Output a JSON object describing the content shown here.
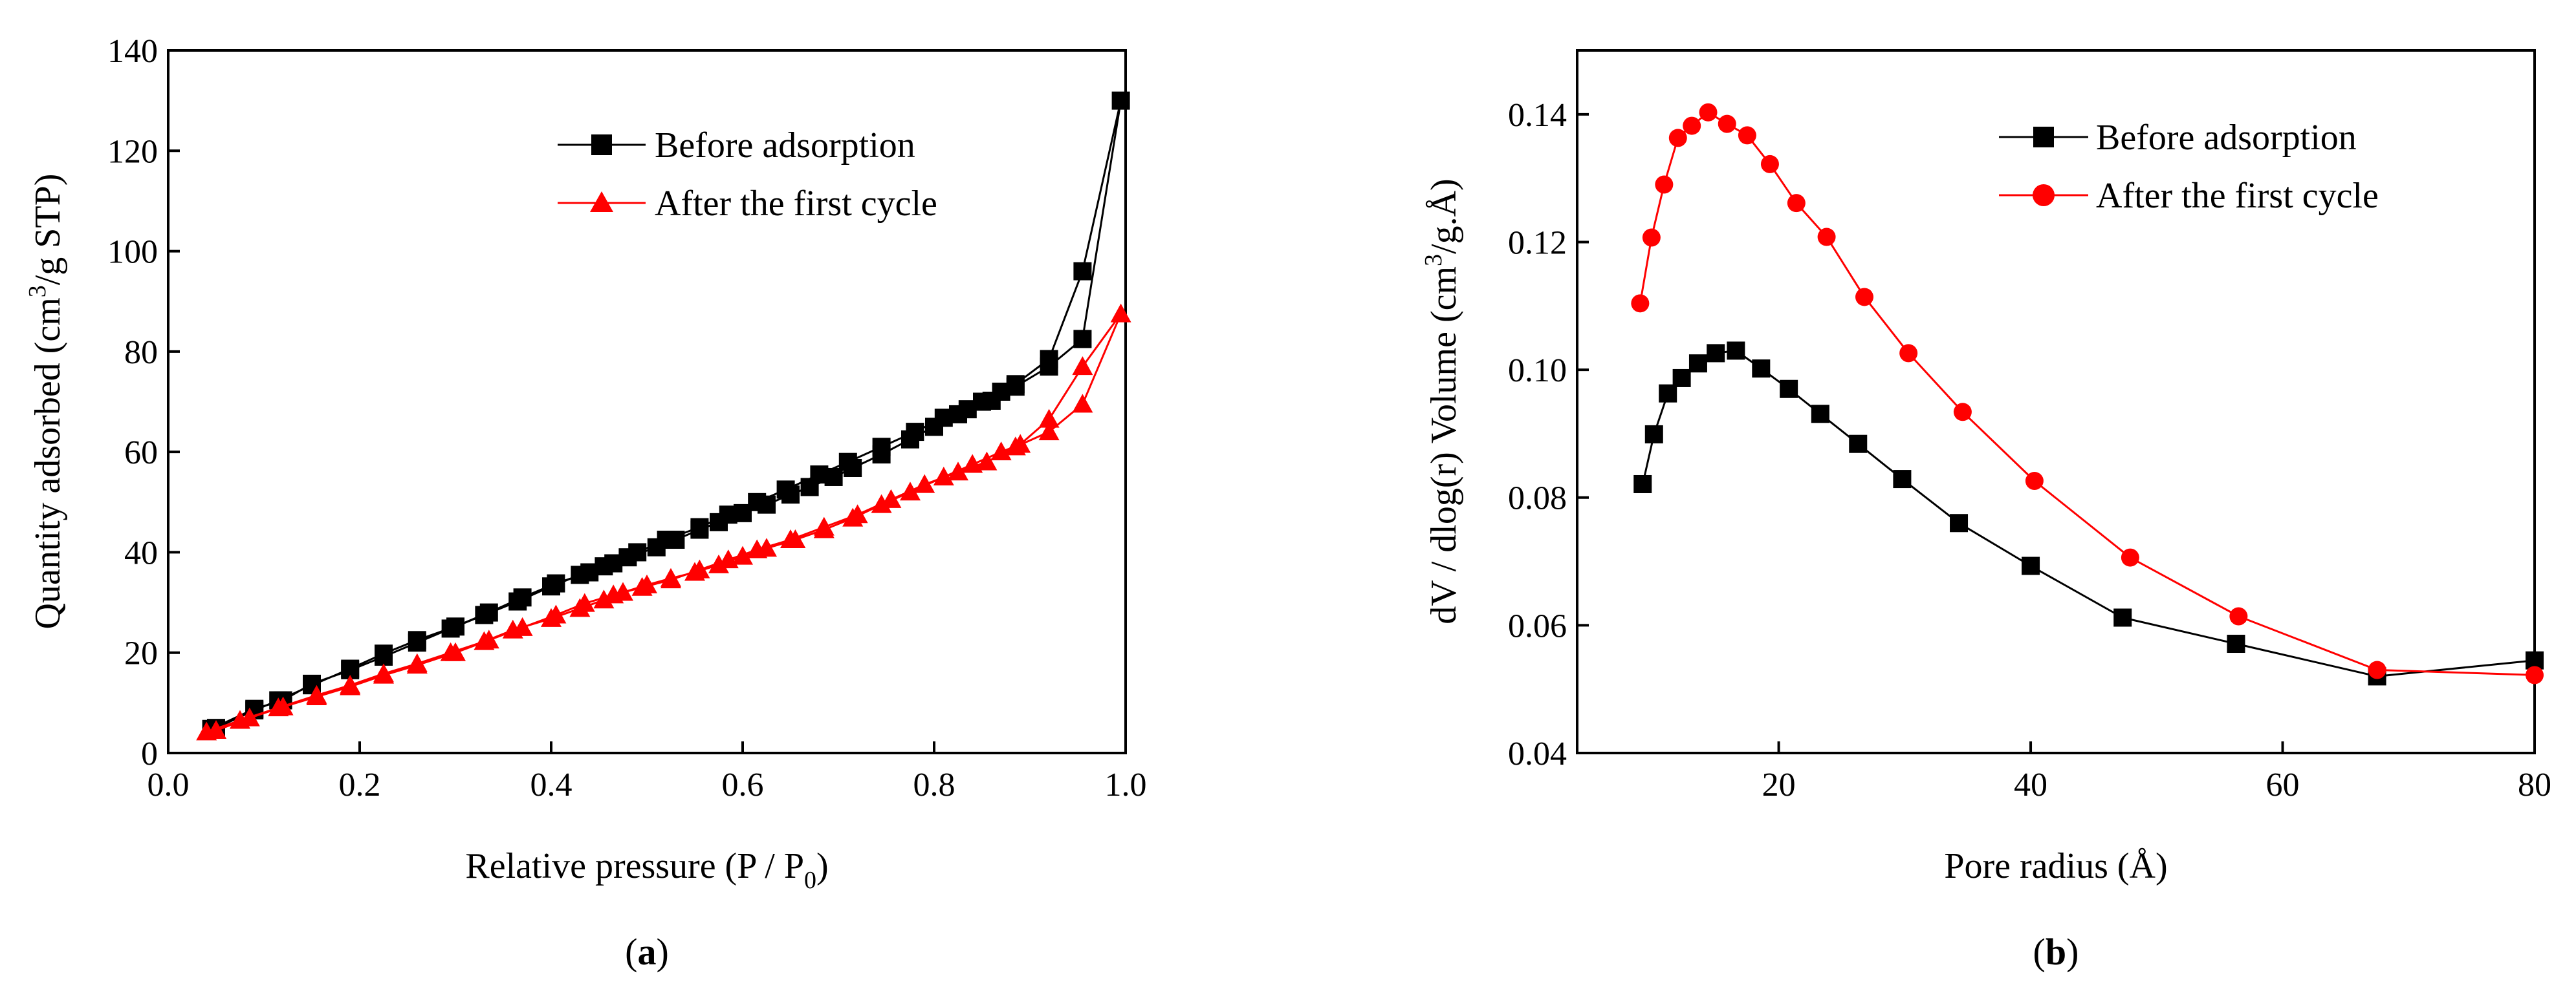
{
  "colors": {
    "before": "#000000",
    "after": "#ff0000",
    "axis": "#000000"
  },
  "chart_data": [
    {
      "type": "line",
      "panel_label": "a",
      "title": "",
      "xlabel": "Relative pressure (P / P",
      "xlabel_sub": "0",
      "xlabel_end": ")",
      "ylabel": "Quantity adsorbed (cm",
      "ylabel_sup": "3",
      "ylabel_end": "/g STP)",
      "xlim": [
        0.0,
        1.0
      ],
      "ylim": [
        0,
        140
      ],
      "xticks": [
        "0.0",
        "0.2",
        "0.4",
        "0.6",
        "0.8",
        "1.0"
      ],
      "xtick_values": [
        0.0,
        0.2,
        0.4,
        0.6,
        0.8,
        1.0
      ],
      "yticks": [
        "0",
        "20",
        "40",
        "60",
        "80",
        "100",
        "120",
        "140"
      ],
      "ytick_values": [
        0,
        20,
        40,
        60,
        80,
        100,
        120,
        140
      ],
      "legend_position": "top-right",
      "series": [
        {
          "name": "Before adsorption",
          "marker": "square",
          "color": "#000000",
          "points": [
            [
              0.045,
              4.8
            ],
            [
              0.09,
              8.8
            ],
            [
              0.12,
              10.5
            ],
            [
              0.15,
              13.8
            ],
            [
              0.19,
              16.5
            ],
            [
              0.225,
              19.2
            ],
            [
              0.26,
              22.0
            ],
            [
              0.295,
              24.8
            ],
            [
              0.33,
              27.5
            ],
            [
              0.365,
              30.2
            ],
            [
              0.4,
              33.2
            ],
            [
              0.43,
              35.5
            ],
            [
              0.455,
              37.2
            ],
            [
              0.48,
              39.0
            ],
            [
              0.51,
              41.0
            ],
            [
              0.53,
              42.5
            ],
            [
              0.555,
              44.5
            ],
            [
              0.575,
              46.0
            ],
            [
              0.6,
              47.8
            ],
            [
              0.625,
              49.5
            ],
            [
              0.65,
              51.5
            ],
            [
              0.67,
              53.0
            ],
            [
              0.695,
              55.0
            ],
            [
              0.715,
              56.8
            ],
            [
              0.745,
              59.5
            ],
            [
              0.775,
              62.5
            ],
            [
              0.8,
              65.0
            ],
            [
              0.825,
              67.5
            ],
            [
              0.85,
              70.0
            ],
            [
              0.87,
              72.0
            ],
            [
              0.885,
              73.5
            ],
            [
              0.92,
              78.5
            ],
            [
              0.955,
              96.0
            ],
            [
              0.995,
              130.0
            ],
            [
              0.955,
              82.5
            ],
            [
              0.92,
              77.0
            ],
            [
              0.885,
              73.0
            ],
            [
              0.86,
              70.2
            ],
            [
              0.835,
              68.5
            ],
            [
              0.81,
              66.8
            ],
            [
              0.78,
              64.0
            ],
            [
              0.745,
              61.0
            ],
            [
              0.71,
              58.0
            ],
            [
              0.68,
              55.5
            ],
            [
              0.645,
              52.5
            ],
            [
              0.615,
              50.0
            ],
            [
              0.585,
              47.5
            ],
            [
              0.555,
              45.0
            ],
            [
              0.52,
              42.5
            ],
            [
              0.49,
              40.0
            ],
            [
              0.465,
              37.8
            ],
            [
              0.44,
              36.0
            ],
            [
              0.405,
              33.8
            ],
            [
              0.37,
              31.0
            ],
            [
              0.335,
              28.0
            ],
            [
              0.3,
              25.2
            ],
            [
              0.26,
              22.5
            ],
            [
              0.225,
              19.8
            ],
            [
              0.19,
              16.8
            ],
            [
              0.15,
              13.5
            ],
            [
              0.115,
              10.5
            ],
            [
              0.09,
              8.5
            ],
            [
              0.05,
              5.0
            ]
          ]
        },
        {
          "name": "After the first cycle",
          "marker": "triangle",
          "color": "#ff0000",
          "points": [
            [
              0.04,
              4.2
            ],
            [
              0.075,
              6.5
            ],
            [
              0.115,
              9.0
            ],
            [
              0.155,
              11.5
            ],
            [
              0.19,
              13.5
            ],
            [
              0.225,
              15.8
            ],
            [
              0.26,
              17.8
            ],
            [
              0.295,
              20.0
            ],
            [
              0.33,
              22.2
            ],
            [
              0.36,
              24.5
            ],
            [
              0.4,
              26.8
            ],
            [
              0.43,
              28.8
            ],
            [
              0.455,
              30.5
            ],
            [
              0.475,
              32.0
            ],
            [
              0.5,
              33.5
            ],
            [
              0.525,
              34.8
            ],
            [
              0.55,
              36.0
            ],
            [
              0.575,
              37.5
            ],
            [
              0.6,
              39.2
            ],
            [
              0.625,
              40.8
            ],
            [
              0.655,
              42.5
            ],
            [
              0.685,
              44.5
            ],
            [
              0.715,
              46.8
            ],
            [
              0.745,
              49.5
            ],
            [
              0.775,
              52.0
            ],
            [
              0.81,
              55.0
            ],
            [
              0.84,
              57.5
            ],
            [
              0.87,
              60.0
            ],
            [
              0.89,
              61.5
            ],
            [
              0.92,
              66.5
            ],
            [
              0.955,
              77.0
            ],
            [
              0.995,
              87.5
            ],
            [
              0.955,
              69.5
            ],
            [
              0.92,
              64.0
            ],
            [
              0.885,
              61.0
            ],
            [
              0.855,
              58.0
            ],
            [
              0.825,
              56.0
            ],
            [
              0.79,
              53.5
            ],
            [
              0.755,
              50.5
            ],
            [
              0.72,
              47.5
            ],
            [
              0.685,
              45.0
            ],
            [
              0.65,
              42.5
            ],
            [
              0.615,
              40.5
            ],
            [
              0.585,
              38.5
            ],
            [
              0.555,
              36.5
            ],
            [
              0.525,
              34.5
            ],
            [
              0.495,
              33.0
            ],
            [
              0.465,
              31.5
            ],
            [
              0.435,
              29.8
            ],
            [
              0.405,
              27.5
            ],
            [
              0.37,
              25.0
            ],
            [
              0.335,
              22.5
            ],
            [
              0.3,
              20.0
            ],
            [
              0.26,
              17.5
            ],
            [
              0.225,
              15.5
            ],
            [
              0.19,
              13.2
            ],
            [
              0.155,
              11.2
            ],
            [
              0.12,
              9.2
            ],
            [
              0.085,
              7.0
            ],
            [
              0.05,
              4.5
            ]
          ]
        }
      ]
    },
    {
      "type": "line",
      "panel_label": "b",
      "title": "",
      "xlabel": "Pore radius (Å)",
      "ylabel": "dV / dlog(r) Volume (cm",
      "ylabel_sup": "3",
      "ylabel_end": "/g.Å)",
      "xlim": [
        4,
        80
      ],
      "ylim": [
        0.04,
        0.15
      ],
      "xticks": [
        "20",
        "40",
        "60",
        "80"
      ],
      "xtick_values": [
        20,
        40,
        60,
        80
      ],
      "yticks": [
        "0.04",
        "0.06",
        "0.08",
        "0.10",
        "0.12",
        "0.14"
      ],
      "ytick_values": [
        0.04,
        0.06,
        0.08,
        0.1,
        0.12,
        0.14
      ],
      "legend_position": "top-right",
      "series": [
        {
          "name": "Before adsorption",
          "marker": "square",
          "color": "#000000",
          "points": [
            [
              9.2,
              0.0821
            ],
            [
              10.1,
              0.0899
            ],
            [
              11.2,
              0.0963
            ],
            [
              12.3,
              0.0987
            ],
            [
              13.6,
              0.101
            ],
            [
              15.0,
              0.1026
            ],
            [
              16.6,
              0.103
            ],
            [
              18.6,
              0.1002
            ],
            [
              20.8,
              0.097
            ],
            [
              23.3,
              0.0931
            ],
            [
              26.3,
              0.0884
            ],
            [
              29.8,
              0.0829
            ],
            [
              34.3,
              0.076
            ],
            [
              40.0,
              0.0693
            ],
            [
              47.3,
              0.0612
            ],
            [
              56.3,
              0.0571
            ],
            [
              67.5,
              0.052
            ],
            [
              80.0,
              0.0545
            ]
          ]
        },
        {
          "name": "After the first cycle",
          "marker": "circle",
          "color": "#ff0000",
          "points": [
            [
              9.0,
              0.1104
            ],
            [
              9.9,
              0.1207
            ],
            [
              10.9,
              0.129
            ],
            [
              12.0,
              0.1363
            ],
            [
              13.1,
              0.1382
            ],
            [
              14.4,
              0.1403
            ],
            [
              15.9,
              0.1385
            ],
            [
              17.5,
              0.1367
            ],
            [
              19.3,
              0.1322
            ],
            [
              21.4,
              0.1261
            ],
            [
              23.8,
              0.1208
            ],
            [
              26.8,
              0.1114
            ],
            [
              30.3,
              0.1026
            ],
            [
              34.6,
              0.0934
            ],
            [
              40.3,
              0.0826
            ],
            [
              47.9,
              0.0706
            ],
            [
              56.5,
              0.0614
            ],
            [
              67.5,
              0.053
            ],
            [
              80.0,
              0.0522
            ]
          ]
        }
      ]
    }
  ]
}
